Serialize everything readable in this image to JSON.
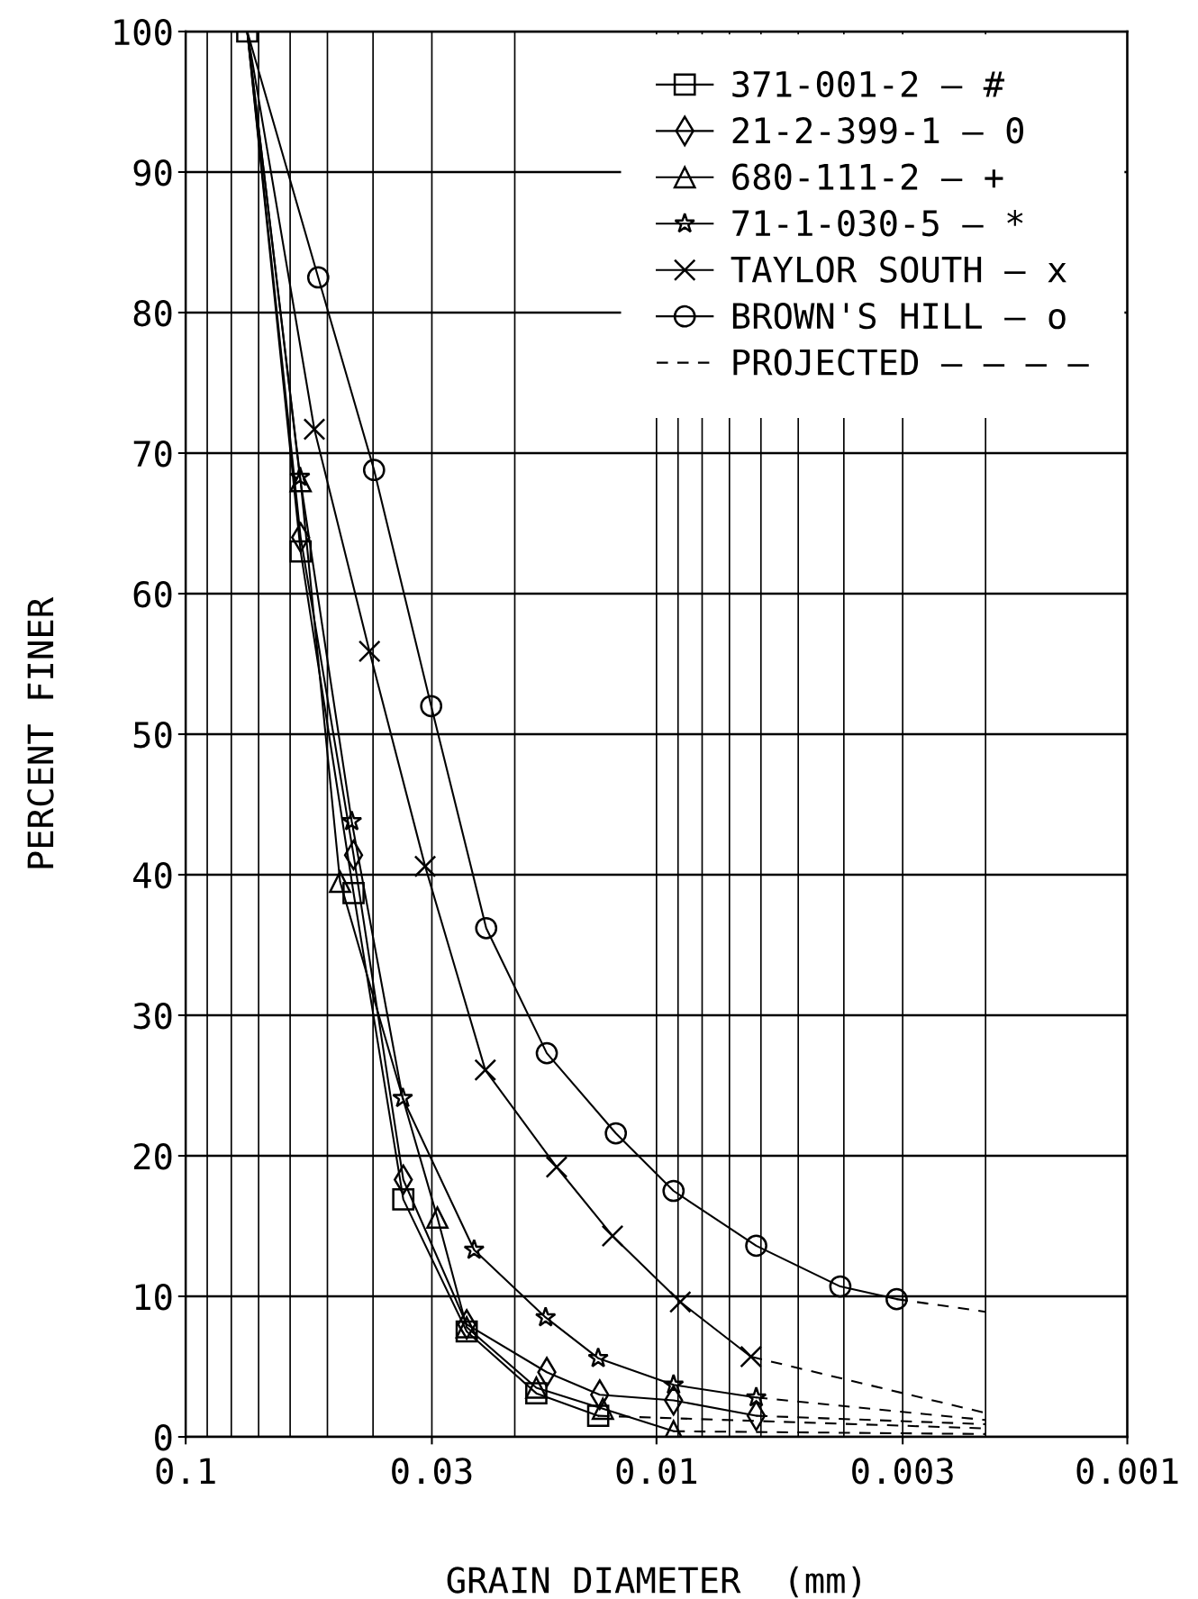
{
  "chart_data": {
    "type": "line",
    "xlabel": "GRAIN DIAMETER  (mm)",
    "ylabel": "PERCENT FINER",
    "log": "x",
    "xlim": [
      0.1,
      0.001
    ],
    "ylim": [
      0,
      100
    ],
    "xticks": [
      0.1,
      0.03,
      0.01,
      0.003,
      0.001
    ],
    "yticks": [
      0,
      10,
      20,
      30,
      40,
      50,
      60,
      70,
      80,
      90,
      100
    ],
    "grid": true,
    "legend": "top right",
    "series": [
      {
        "name": "371-001-2 — #",
        "color": "#000000",
        "marker": "square",
        "line_style": "solid",
        "x": [
          0.074,
          0.057,
          0.044,
          0.0345,
          0.0253,
          0.018,
          0.0133
        ],
        "values": [
          100,
          63.0,
          38.7,
          16.9,
          7.5,
          3.1,
          1.5
        ]
      },
      {
        "name": "21-2-399-1 — 0",
        "color": "#000000",
        "marker": "diamond",
        "line_style": "solid",
        "x": [
          0.074,
          0.057,
          0.044,
          0.0345,
          0.0253,
          0.0171,
          0.0132,
          0.0092,
          0.00614
        ],
        "values": [
          100,
          64.0,
          41.4,
          18.3,
          8.0,
          4.6,
          3.0,
          2.6,
          1.5
        ]
      },
      {
        "name": "680-111-2 — +",
        "color": "#000000",
        "marker": "triangle",
        "line_style": "solid",
        "x": [
          0.074,
          0.057,
          0.047,
          0.0292,
          0.0253,
          0.018,
          0.013,
          0.0092
        ],
        "values": [
          100,
          68.0,
          39.5,
          15.6,
          7.8,
          3.5,
          2.0,
          0.4
        ]
      },
      {
        "name": "71-1-030-5 — *",
        "color": "#000000",
        "marker": "star",
        "line_style": "solid",
        "x": [
          0.074,
          0.0572,
          0.0444,
          0.0346,
          0.0244,
          0.0172,
          0.0133,
          0.0092,
          0.00614
        ],
        "values": [
          100,
          68.3,
          43.8,
          24.1,
          13.3,
          8.5,
          5.6,
          3.7,
          2.8
        ]
      },
      {
        "name": "TAYLOR SOUTH — x",
        "color": "#000000",
        "marker": "cross",
        "line_style": "solid",
        "x": [
          0.074,
          0.0533,
          0.0407,
          0.031,
          0.0231,
          0.0163,
          0.0124,
          0.0089,
          0.0063
        ],
        "values": [
          100,
          71.7,
          55.9,
          40.6,
          26.1,
          19.2,
          14.3,
          9.6,
          5.7
        ]
      },
      {
        "name": "BROWN'S HILL — o",
        "color": "#000000",
        "marker": "circle",
        "line_style": "solid",
        "x": [
          0.074,
          0.0523,
          0.0398,
          0.0301,
          0.023,
          0.0171,
          0.0122,
          0.0092,
          0.00614,
          0.00407,
          0.00309
        ],
        "values": [
          100,
          82.5,
          68.8,
          52.0,
          36.2,
          27.3,
          21.6,
          17.5,
          13.6,
          10.7,
          9.8
        ]
      },
      {
        "name": "PROJECTED — — — —",
        "color": "#000000",
        "line_style": "dashed",
        "x": [
          0.00309,
          0.002
        ],
        "values": [
          9.8,
          8.9
        ]
      },
      {
        "color": "#000000",
        "line_style": "dashed",
        "x": [
          0.0063,
          0.002
        ],
        "values": [
          5.7,
          1.7
        ]
      },
      {
        "color": "#000000",
        "line_style": "dashed",
        "x": [
          0.00614,
          0.002
        ],
        "values": [
          2.8,
          1.2
        ]
      },
      {
        "color": "#000000",
        "line_style": "dashed",
        "x": [
          0.00614,
          0.002
        ],
        "values": [
          1.5,
          0.9
        ]
      },
      {
        "color": "#000000",
        "line_style": "dashed",
        "x": [
          0.0133,
          0.002
        ],
        "values": [
          1.5,
          0.6
        ]
      },
      {
        "color": "#000000",
        "line_style": "dashed",
        "x": [
          0.0092,
          0.002
        ],
        "values": [
          0.4,
          0.2
        ]
      }
    ]
  }
}
